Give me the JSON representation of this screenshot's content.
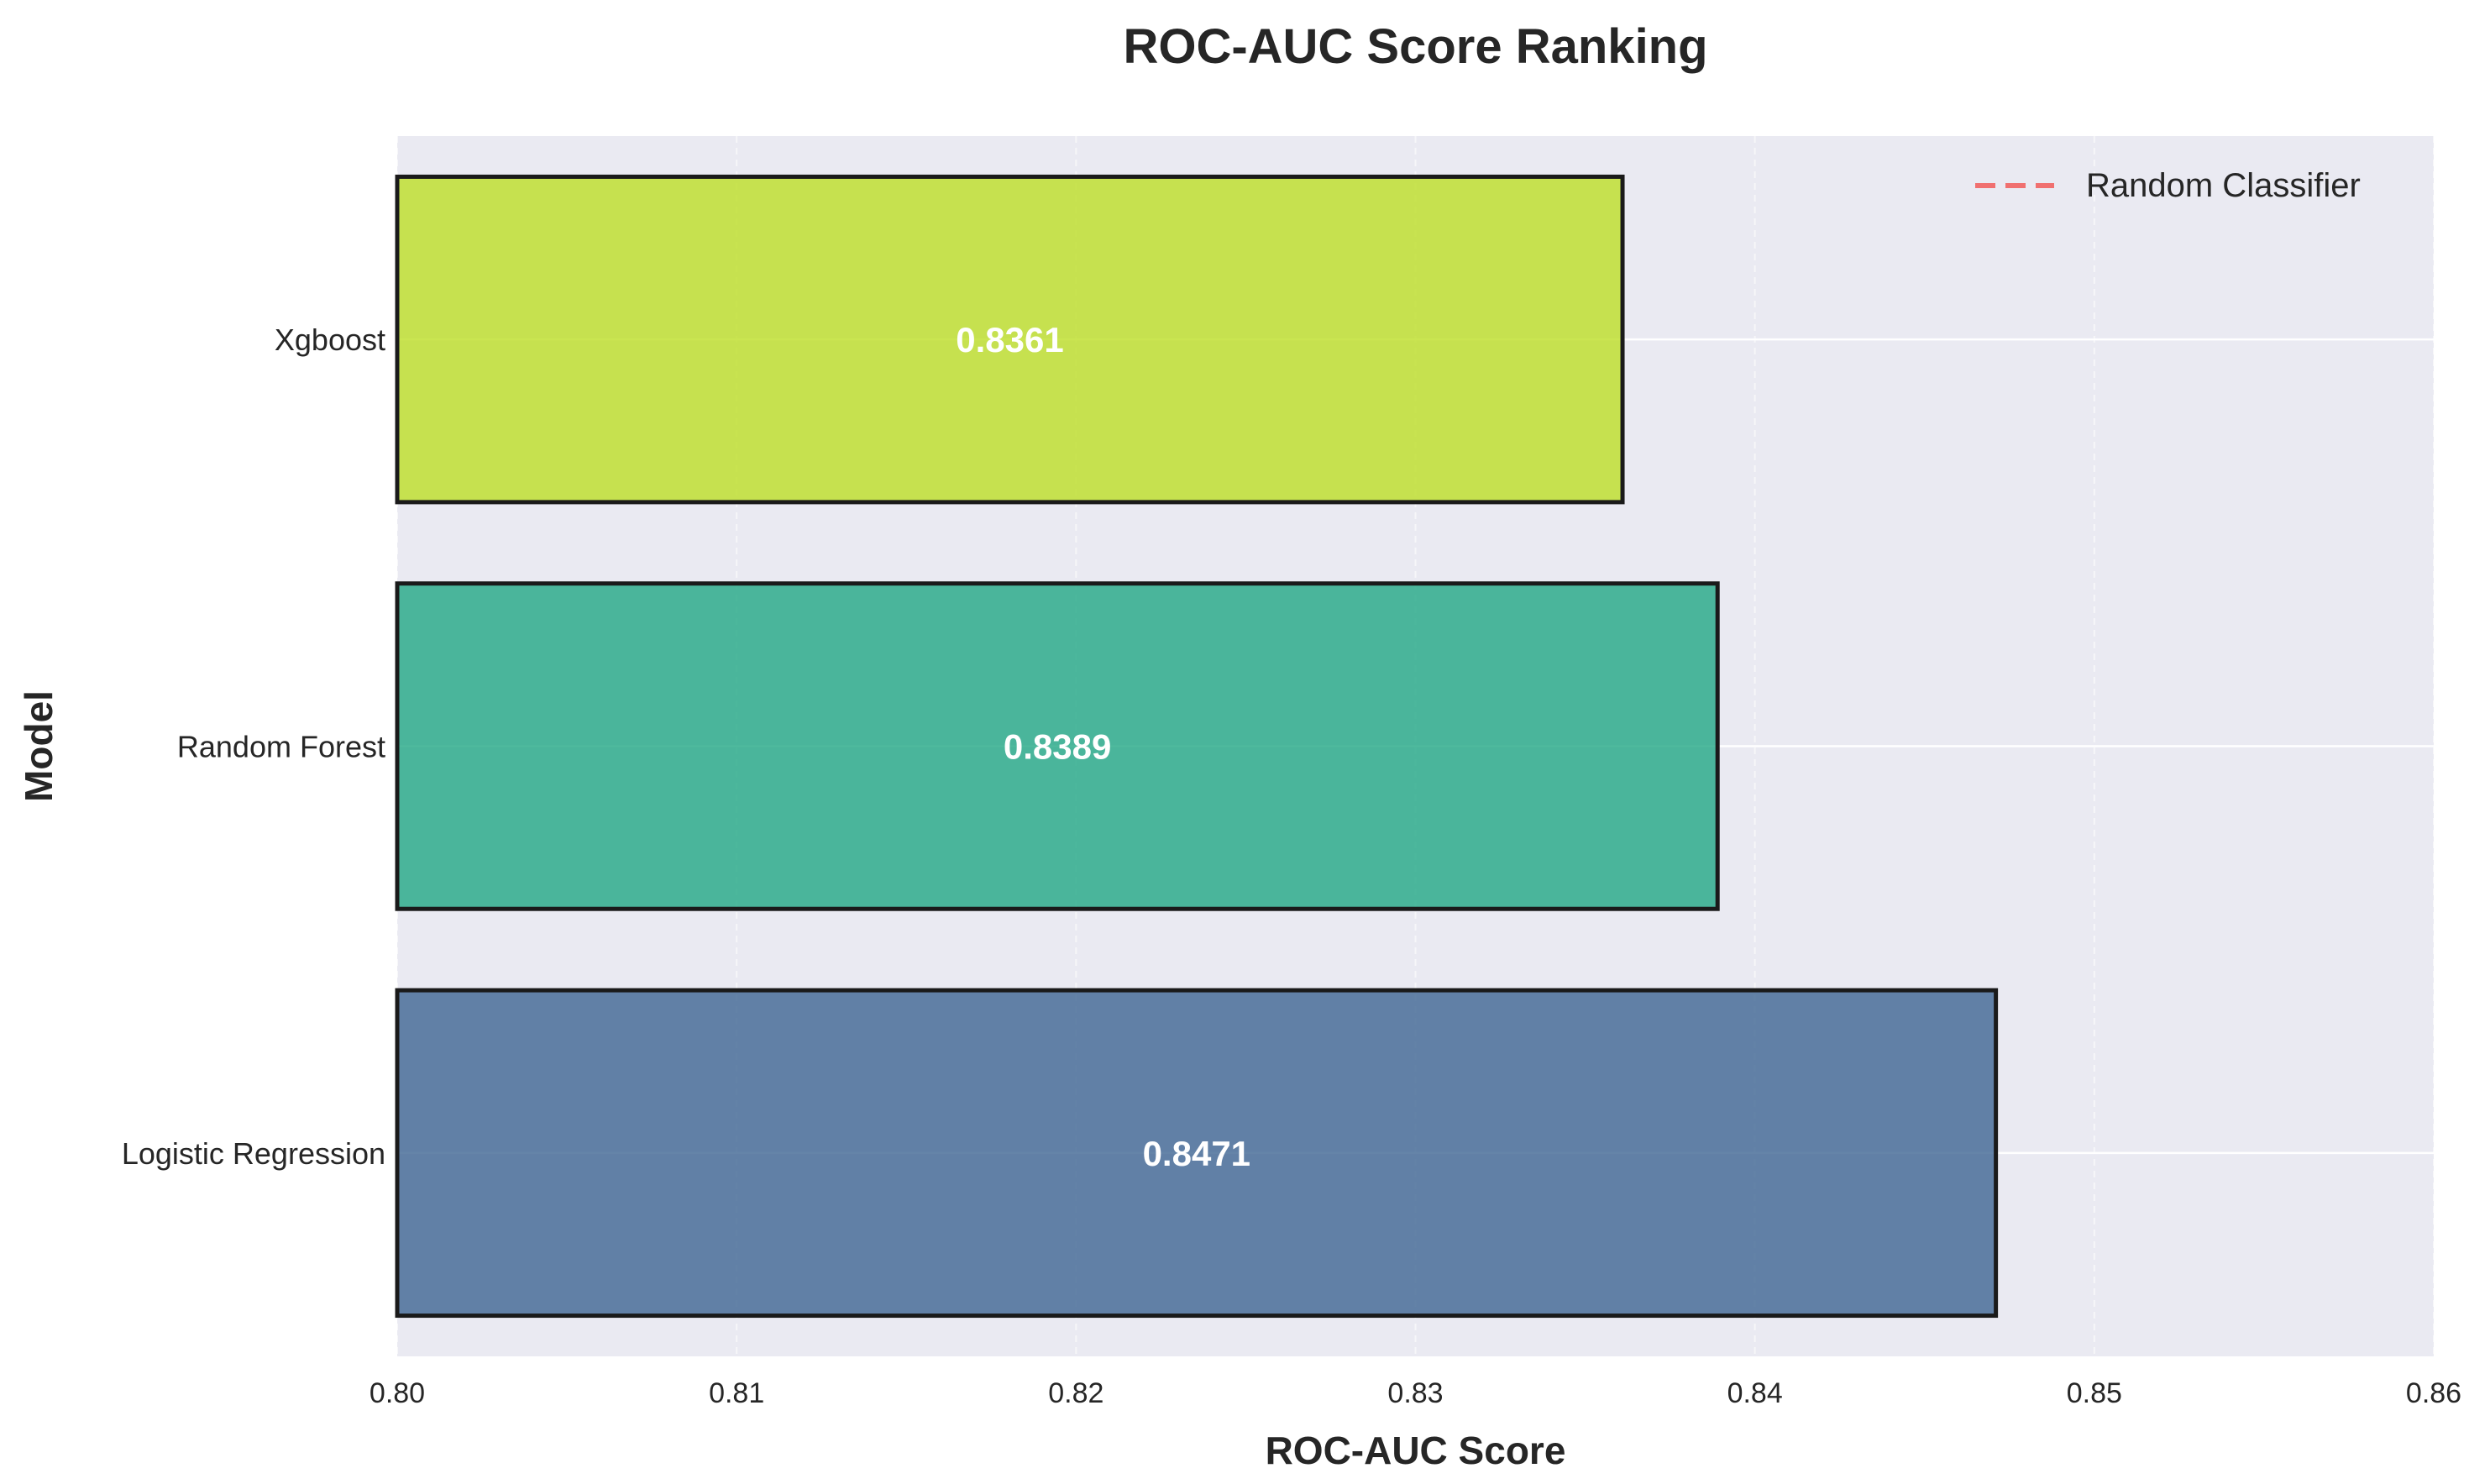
{
  "chart_data": {
    "type": "bar",
    "orientation": "horizontal",
    "title": "ROC-AUC Score Ranking",
    "xlabel": "ROC-AUC Score",
    "ylabel": "Model",
    "categories": [
      "Logistic Regression",
      "Random Forest",
      "Xgboost"
    ],
    "values": [
      0.8471,
      0.8389,
      0.8361
    ],
    "value_labels": [
      "0.8471",
      "0.8389",
      "0.8361"
    ],
    "bar_colors": [
      "#3e6592",
      "#22a884",
      "#bddf26"
    ],
    "bar_edge_color": "#1a1a1a",
    "xlim": [
      0.8,
      0.86
    ],
    "xticks": [
      0.8,
      0.81,
      0.82,
      0.83,
      0.84,
      0.85,
      0.86
    ],
    "xtick_labels": [
      "0.80",
      "0.81",
      "0.82",
      "0.83",
      "0.84",
      "0.85",
      "0.86"
    ],
    "grid": true,
    "background_color": "#eaeaf2",
    "legend": {
      "position": "top-right",
      "entries": [
        {
          "label": "Random Classifier",
          "color": "#f07070",
          "style": "dashed"
        }
      ]
    }
  }
}
